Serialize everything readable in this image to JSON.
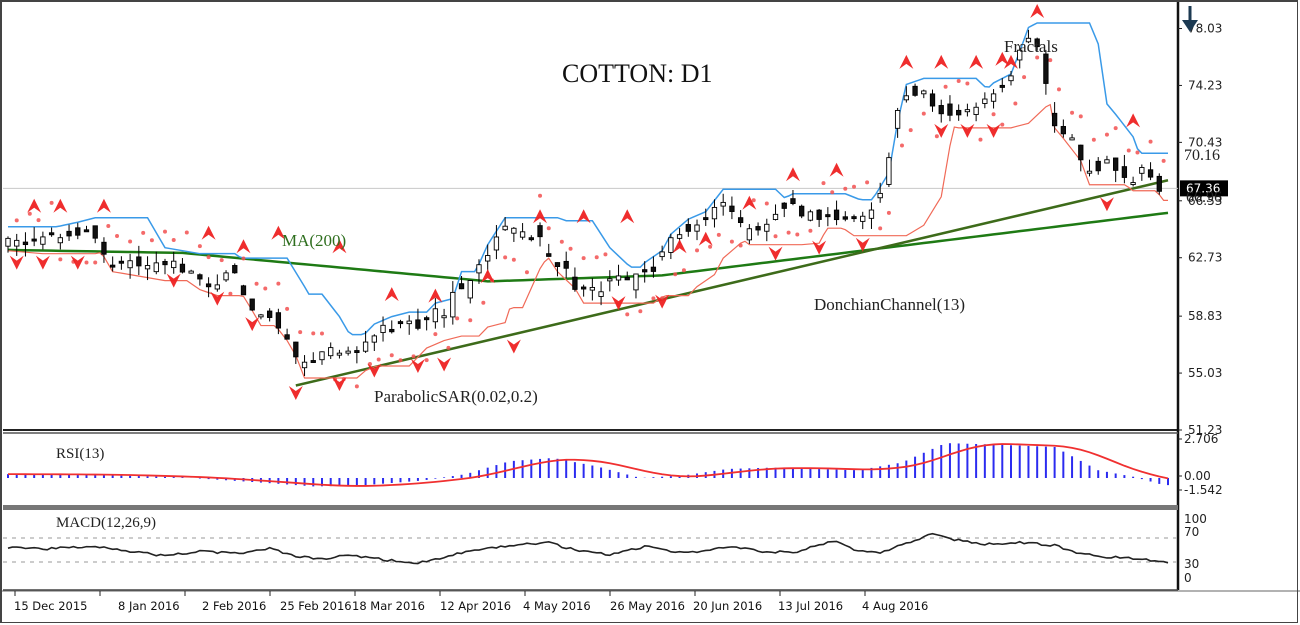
{
  "title": "COTTON: D1",
  "annotations": {
    "fractals": "Fractals",
    "ma": "MA(200)",
    "donchian": "DonchianChannel(13)",
    "psar": "ParabolicSAR(0.02,0.2)",
    "level_upper": "70.16",
    "level_lower": "66.96",
    "current_price": "67.36",
    "arrow": "down-arrow"
  },
  "colors": {
    "candle": "#000000",
    "ma": "#1e7a14",
    "trendline": "#3d6b1a",
    "donchian_upper": "#3a9ae8",
    "donchian_lower": "#f06a58",
    "psar": "#f25050",
    "fractal": "#ee2222",
    "rsi_hist": "#2b2bf0",
    "rsi_signal": "#f03030",
    "macd_line": "#222222",
    "arrow": "#1c3a52"
  },
  "chart_data": [
    {
      "type": "candlestick",
      "title": "COTTON: D1",
      "xlabel": "",
      "ylabel": "",
      "yticks": [
        78.03,
        74.23,
        70.43,
        66.53,
        62.73,
        58.83,
        55.03,
        51.23
      ],
      "ylim": [
        51.23,
        79.5
      ],
      "xticks": [
        "15 Dec 2015",
        "8 Jan 2016",
        "2 Feb 2016",
        "25 Feb 2016",
        "18 Mar 2016",
        "12 Apr 2016",
        "4 May 2016",
        "26 May 2016",
        "20 Jun 2016",
        "13 Jul 2016",
        "4 Aug 2016"
      ],
      "current_price": 67.36,
      "levels": {
        "resistance": 70.16,
        "support": 66.96
      },
      "close_path": [
        [
          0,
          64.0
        ],
        [
          8,
          63.8
        ],
        [
          16,
          64.3
        ],
        [
          20,
          64.6
        ],
        [
          24,
          62.6
        ],
        [
          30,
          62.3
        ],
        [
          36,
          62.0
        ],
        [
          40,
          62.2
        ],
        [
          44,
          61.4
        ],
        [
          48,
          61.0
        ],
        [
          52,
          61.9
        ],
        [
          56,
          60.0
        ],
        [
          58,
          59.0
        ],
        [
          60,
          59.5
        ],
        [
          64,
          58.0
        ],
        [
          66,
          57.0
        ],
        [
          68,
          55.5
        ],
        [
          70,
          56.0
        ],
        [
          74,
          56.5
        ],
        [
          78,
          56.8
        ],
        [
          80,
          56.3
        ],
        [
          84,
          57.5
        ],
        [
          88,
          58.0
        ],
        [
          92,
          58.3
        ],
        [
          96,
          58.3
        ],
        [
          98,
          58.9
        ],
        [
          102,
          59.2
        ],
        [
          104,
          61.0
        ],
        [
          106,
          60.2
        ],
        [
          108,
          61.5
        ],
        [
          110,
          62.8
        ],
        [
          114,
          64.6
        ],
        [
          118,
          64.2
        ],
        [
          122,
          64.4
        ],
        [
          124,
          63.5
        ],
        [
          126,
          62.6
        ],
        [
          130,
          61.5
        ],
        [
          132,
          60.5
        ],
        [
          136,
          60.5
        ],
        [
          140,
          61.3
        ],
        [
          144,
          61.0
        ],
        [
          146,
          61.6
        ],
        [
          150,
          62.4
        ],
        [
          152,
          63.5
        ],
        [
          156,
          64.5
        ],
        [
          160,
          65.0
        ],
        [
          164,
          66.5
        ],
        [
          168,
          65.4
        ],
        [
          170,
          64.4
        ],
        [
          174,
          64.5
        ],
        [
          176,
          65.6
        ],
        [
          180,
          66.2
        ],
        [
          186,
          65.5
        ],
        [
          190,
          65.8
        ],
        [
          194,
          65.0
        ],
        [
          198,
          65.7
        ],
        [
          202,
          67.6
        ],
        [
          204,
          71.0
        ],
        [
          206,
          73.5
        ],
        [
          210,
          73.9
        ],
        [
          214,
          72.8
        ],
        [
          218,
          72.2
        ],
        [
          222,
          72.5
        ],
        [
          226,
          73.6
        ],
        [
          230,
          74.2
        ],
        [
          232,
          75.7
        ],
        [
          234,
          77.3
        ],
        [
          236,
          77.6
        ],
        [
          238,
          76.2
        ],
        [
          240,
          72.2
        ],
        [
          242,
          71.5
        ],
        [
          246,
          70.0
        ],
        [
          248,
          68.4
        ],
        [
          250,
          68.9
        ],
        [
          254,
          68.9
        ],
        [
          258,
          68.0
        ],
        [
          262,
          68.5
        ],
        [
          265,
          67.36
        ]
      ],
      "series": [
        {
          "name": "MA(200)",
          "values_desc": "flat ~63.2 declining to ~61.2 at Mar-Apr 2016, rising to ~65.8 by Aug 2016"
        },
        {
          "name": "DonchianChannel(13)",
          "upper_range": [
            56.8,
            78.0
          ],
          "lower_range": [
            54.0,
            71.8
          ]
        },
        {
          "name": "ParabolicSAR(0.02,0.2)",
          "last_value": 72.5
        }
      ],
      "trendline": {
        "from": [
          "25 Feb 2016",
          54.3
        ],
        "to": [
          "end",
          67.7
        ]
      }
    },
    {
      "type": "bar+line",
      "title": "RSI(13)",
      "yticks": [
        2.706,
        0.0,
        -1.542
      ],
      "ylim": [
        -1.542,
        2.9
      ],
      "histogram_desc": "small positive Dec-Jan, negative to ~-0.7 late Feb, positive ~1.5 mid-Apr, ~0.8 Jun, peak ~2.7 mid-Jul, declining to ~-0.5 end"
    },
    {
      "type": "line",
      "title": "MACD(12,26,9)",
      "yticks": [
        100,
        70,
        30,
        0
      ],
      "ylim": [
        0,
        100
      ],
      "dashed_levels": [
        70,
        30
      ],
      "line_desc": "oscillates 40-60, lows ~25 late Feb, highs ~80 mid-Jul, ending ~30"
    }
  ]
}
